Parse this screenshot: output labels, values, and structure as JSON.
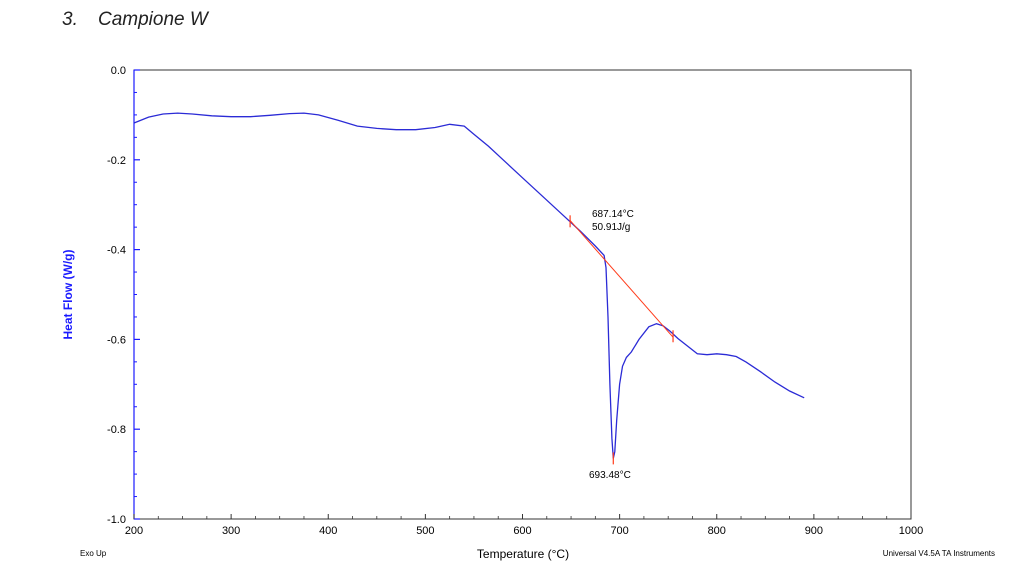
{
  "heading": {
    "number": "3.",
    "text": "Campione W"
  },
  "footer": {
    "left": "Exo Up",
    "right": "Universal V4.5A TA Instruments"
  },
  "colors": {
    "curve": "#2b2bd6",
    "tangent": "#ff3b1a",
    "axis": "#1a1aff",
    "frame": "#333333"
  },
  "chart_data": {
    "type": "line",
    "xlabel": "Temperature (°C)",
    "ylabel": "Heat Flow (W/g)",
    "xlim": [
      200,
      1000
    ],
    "ylim": [
      -1.0,
      0.0
    ],
    "x_ticks": [
      "200",
      "300",
      "400",
      "500",
      "600",
      "700",
      "800",
      "900",
      "1000"
    ],
    "y_ticks": [
      "0.0",
      "-0.2",
      "-0.4",
      "-0.6",
      "-0.8",
      "-1.0"
    ],
    "grid": false,
    "series": [
      {
        "x": [
          200,
          215,
          230,
          245,
          260,
          280,
          300,
          320,
          340,
          360,
          375,
          390,
          410,
          430,
          450,
          470,
          490,
          510,
          525,
          540,
          550,
          565,
          580,
          600,
          620,
          640,
          660,
          675,
          684,
          686,
          688,
          690,
          692,
          693.48,
          695,
          697,
          700,
          703,
          707,
          712,
          720,
          730,
          738,
          745,
          752,
          760,
          770,
          780,
          790,
          800,
          810,
          820,
          830,
          845,
          860,
          875,
          890
        ],
        "y": [
          -0.118,
          -0.105,
          -0.098,
          -0.096,
          -0.098,
          -0.102,
          -0.104,
          -0.104,
          -0.101,
          -0.097,
          -0.096,
          -0.1,
          -0.112,
          -0.125,
          -0.13,
          -0.133,
          -0.133,
          -0.128,
          -0.121,
          -0.125,
          -0.143,
          -0.17,
          -0.2,
          -0.24,
          -0.28,
          -0.32,
          -0.36,
          -0.392,
          -0.413,
          -0.44,
          -0.55,
          -0.7,
          -0.82,
          -0.865,
          -0.85,
          -0.78,
          -0.7,
          -0.66,
          -0.64,
          -0.628,
          -0.6,
          -0.572,
          -0.565,
          -0.57,
          -0.582,
          -0.598,
          -0.615,
          -0.632,
          -0.634,
          -0.632,
          -0.634,
          -0.638,
          -0.65,
          -0.672,
          -0.695,
          -0.715,
          -0.73
        ]
      }
    ],
    "tangent": {
      "x": [
        649,
        755
      ],
      "y": [
        -0.335,
        -0.595
      ]
    },
    "markers": [
      {
        "x": 649,
        "y": -0.337
      },
      {
        "x": 755,
        "y": -0.593
      },
      {
        "x": 693.48,
        "y": -0.865
      }
    ],
    "annotations": {
      "onset_temp": "687.14°C",
      "enthalpy": "50.91J/g",
      "peak_temp": "693.48°C"
    }
  }
}
